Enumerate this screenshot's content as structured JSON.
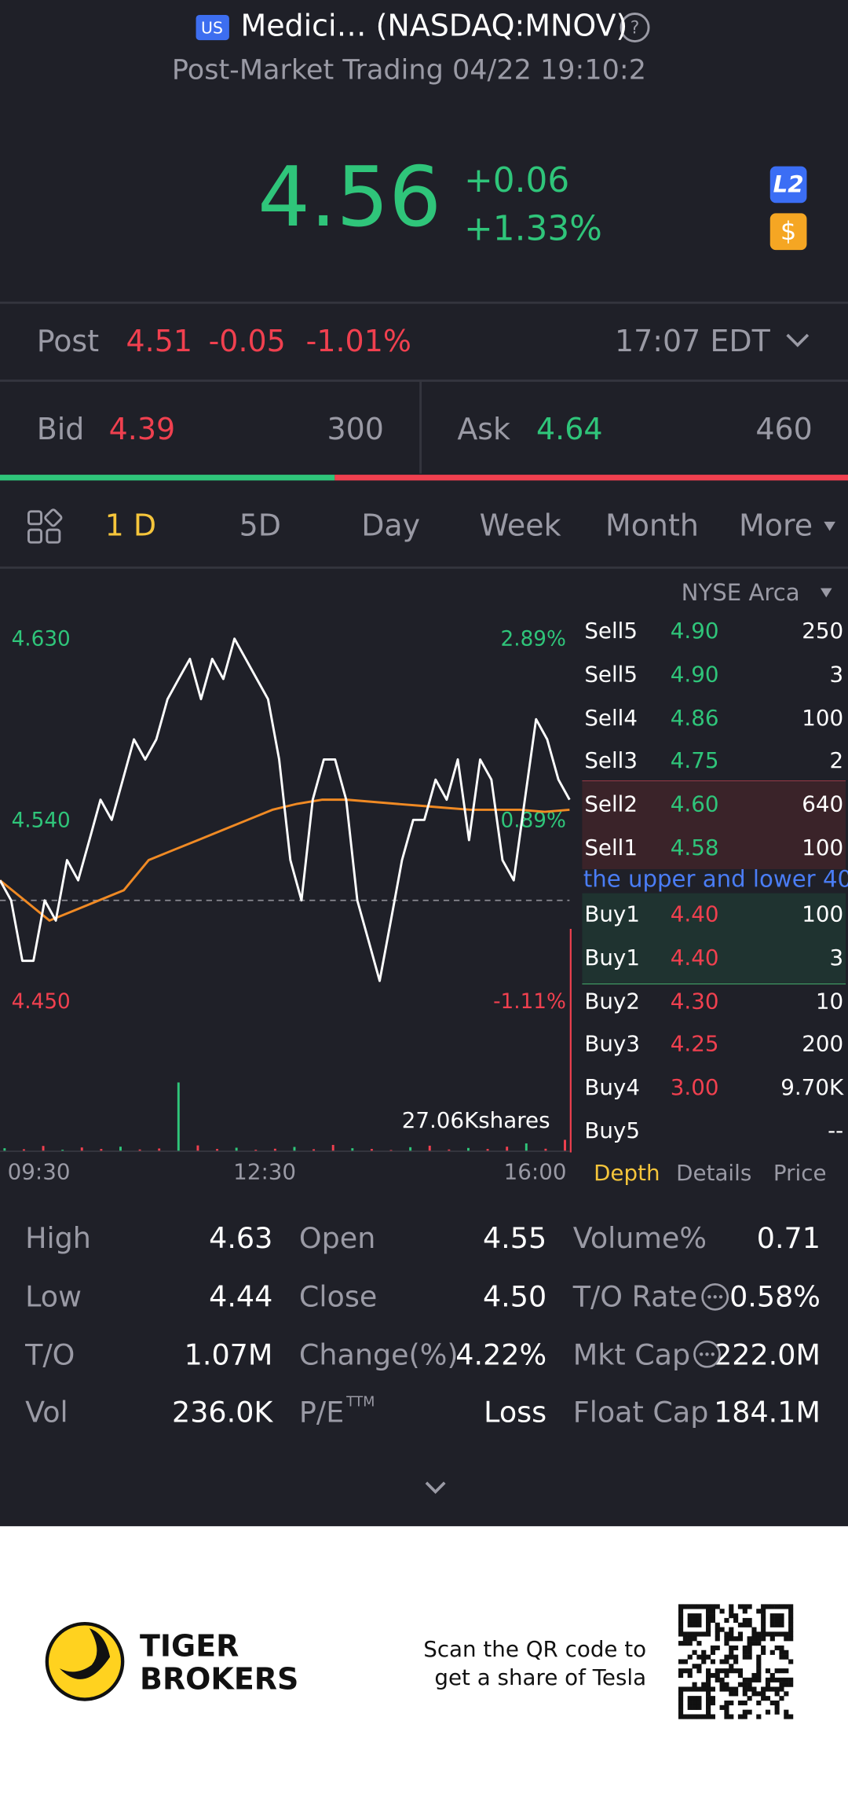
{
  "header": {
    "badge": "US",
    "title": "Medici… (NASDAQ:MNOV)",
    "subtitle": "Post-Market Trading 04/22 19:10:2"
  },
  "quote": {
    "price": "4.56",
    "change": "+0.06",
    "change_pct": "+1.33%",
    "level_badge": "L2",
    "currency_badge": "$"
  },
  "post": {
    "label": "Post",
    "price": "4.51",
    "change": "-0.05",
    "change_pct": "-1.01%",
    "time": "17:07 EDT"
  },
  "bid_ask": {
    "bid_label": "Bid",
    "bid_price": "4.39",
    "bid_size": 300,
    "ask_label": "Ask",
    "ask_price": "4.64",
    "ask_size": 460
  },
  "tabs": {
    "items": [
      "1 D",
      "5D",
      "Day",
      "Week",
      "Month",
      "More"
    ],
    "active": 0
  },
  "intraday": {
    "exchange": "NYSE Arca",
    "ylim": [
      4.45,
      4.63
    ],
    "yticks": [
      {
        "value": 4.63,
        "label": "4.630"
      },
      {
        "value": 4.54,
        "label": "4.540"
      },
      {
        "value": 4.45,
        "label": "4.450"
      }
    ],
    "pct_ticks": [
      {
        "value": 4.63,
        "label": "2.89%"
      },
      {
        "value": 4.54,
        "label": "0.89%"
      },
      {
        "value": 4.45,
        "label": "-1.11%"
      }
    ],
    "prev_close": 4.5,
    "xticks": [
      "09:30",
      "12:30",
      "16:00"
    ],
    "price": [
      4.51,
      4.5,
      4.47,
      4.47,
      4.5,
      4.49,
      4.52,
      4.51,
      4.53,
      4.55,
      4.54,
      4.56,
      4.58,
      4.57,
      4.58,
      4.6,
      4.61,
      4.62,
      4.6,
      4.62,
      4.61,
      4.63,
      4.62,
      4.61,
      4.6,
      4.57,
      4.52,
      4.5,
      4.55,
      4.57,
      4.57,
      4.55,
      4.5,
      4.48,
      4.46,
      4.49,
      4.52,
      4.54,
      4.54,
      4.56,
      4.55,
      4.57,
      4.53,
      4.57,
      4.56,
      4.52,
      4.51,
      4.55,
      4.59,
      4.58,
      4.56,
      4.55
    ],
    "average": [
      4.51,
      4.5,
      4.49,
      4.495,
      4.5,
      4.505,
      4.52,
      4.525,
      4.53,
      4.535,
      4.54,
      4.545,
      4.548,
      4.55,
      4.55,
      4.549,
      4.548,
      4.547,
      4.546,
      4.545,
      4.545,
      4.545,
      4.544,
      4.545
    ],
    "volume_label": "27.06Kshares",
    "volume": [
      1.2,
      0.8,
      2.1,
      0.6,
      1.5,
      0.9,
      1.8,
      0.7,
      1.1,
      27.06,
      2.3,
      0.9,
      1.4,
      0.6,
      1.0,
      1.7,
      0.8,
      2.5,
      1.2,
      0.9,
      0.5,
      1.6,
      2.2,
      0.7,
      1.3,
      0.9,
      1.8,
      3.1,
      1.0,
      4.5
    ]
  },
  "order_book": {
    "sell": [
      {
        "level": "Sell5",
        "price": "4.90",
        "size": "250"
      },
      {
        "level": "Sell5",
        "price": "4.90",
        "size": "3"
      },
      {
        "level": "Sell4",
        "price": "4.86",
        "size": "100"
      },
      {
        "level": "Sell3",
        "price": "4.75",
        "size": "2"
      },
      {
        "level": "Sell2",
        "price": "4.60",
        "size": "640"
      },
      {
        "level": "Sell1",
        "price": "4.58",
        "size": "100"
      }
    ],
    "notice": "the upper and lower 40",
    "buy": [
      {
        "level": "Buy1",
        "price": "4.40",
        "size": "100"
      },
      {
        "level": "Buy1",
        "price": "4.40",
        "size": "3"
      },
      {
        "level": "Buy2",
        "price": "4.30",
        "size": "10"
      },
      {
        "level": "Buy3",
        "price": "4.25",
        "size": "200"
      },
      {
        "level": "Buy4",
        "price": "3.00",
        "size": "9.70K"
      },
      {
        "level": "Buy5",
        "price": "",
        "size": "--"
      }
    ],
    "tabs": [
      "Depth",
      "Details",
      "Price"
    ]
  },
  "stats": [
    [
      {
        "label": "High",
        "value": "4.63"
      },
      {
        "label": "Open",
        "value": "4.55"
      },
      {
        "label": "Volume%",
        "value": "0.71"
      }
    ],
    [
      {
        "label": "Low",
        "value": "4.44"
      },
      {
        "label": "Close",
        "value": "4.50"
      },
      {
        "label": "T/O Rate",
        "value": "0.58%"
      }
    ],
    [
      {
        "label": "T/O",
        "value": "1.07M"
      },
      {
        "label": "Change(%)",
        "value": "4.22%"
      },
      {
        "label": "Mkt Cap",
        "value": "222.0M"
      }
    ],
    [
      {
        "label": "Vol",
        "value": "236.0K"
      },
      {
        "label": "P/E",
        "sup": "TTM",
        "value": "Loss"
      },
      {
        "label": "Float Cap",
        "value": "184.1M"
      }
    ]
  ],
  "footer": {
    "brand_line1": "TIGER",
    "brand_line2": "BROKERS",
    "promo_line1": "Scan the QR code to",
    "promo_line2": "get a share of Tesla"
  }
}
